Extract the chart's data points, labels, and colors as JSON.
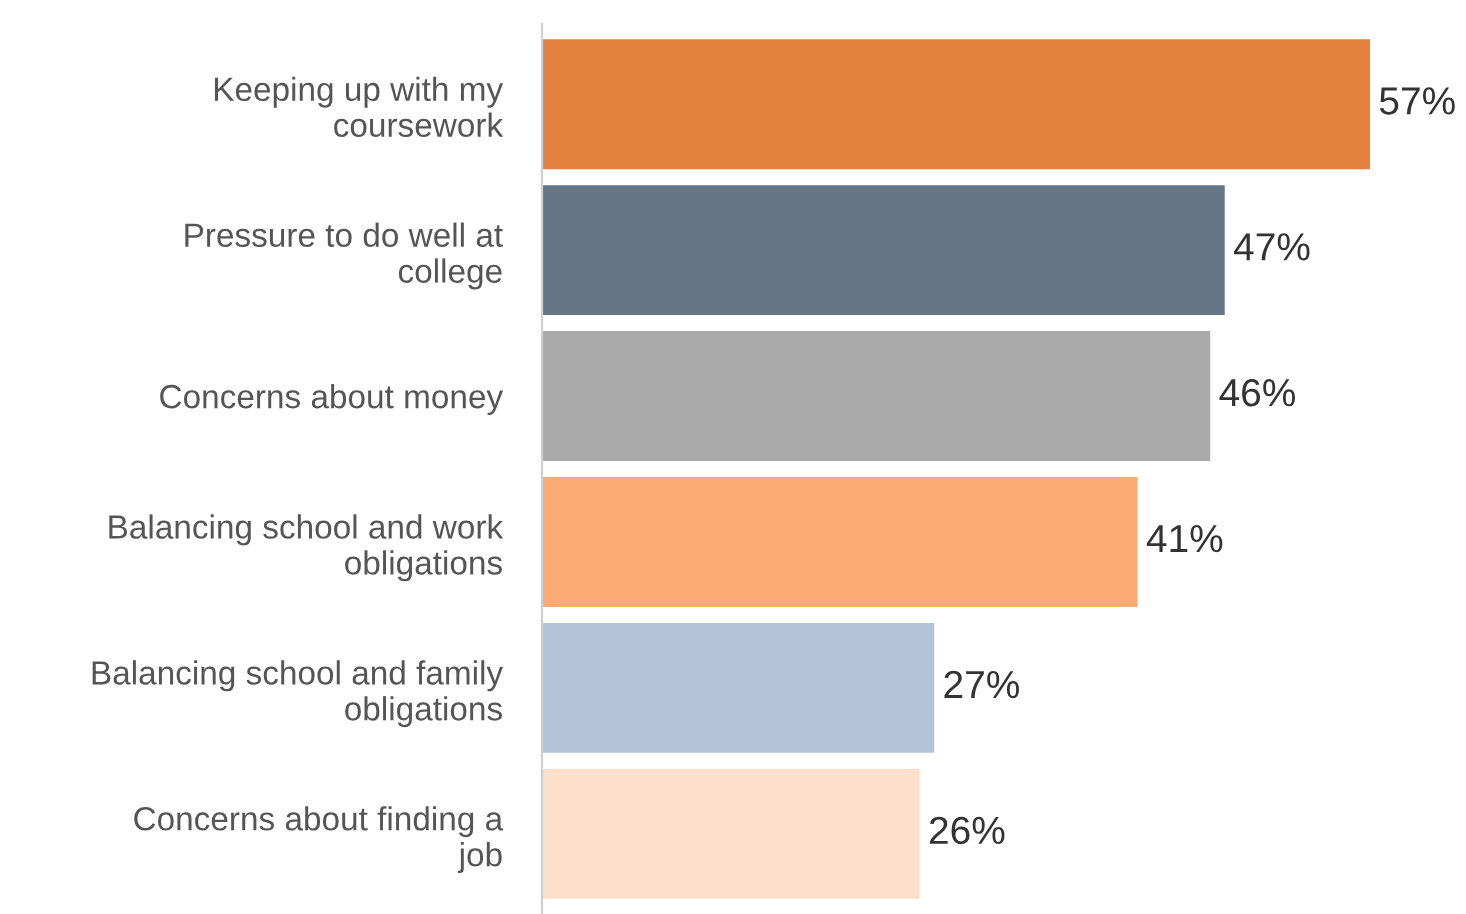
{
  "chart_data": {
    "type": "bar",
    "orientation": "horizontal",
    "data_labels": true,
    "grid": false,
    "legend": false,
    "tick_labels": "y",
    "categories": [
      "Keeping up with my\ncoursework",
      "Pressure to do well at\ncollege",
      "Concerns about money",
      "Balancing school and work\nobligations",
      "Balancing school and family\nobligations",
      "Concerns about finding a\njob"
    ],
    "values": [
      57,
      47,
      46,
      41,
      27,
      26
    ],
    "value_labels": [
      "57%",
      "47%",
      "46%",
      "41%",
      "27%",
      "26%"
    ],
    "colors": [
      "#e5813f",
      "#647585",
      "#aaaaaa",
      "#fdab74",
      "#b3c3d9",
      "#fde0cc"
    ]
  }
}
